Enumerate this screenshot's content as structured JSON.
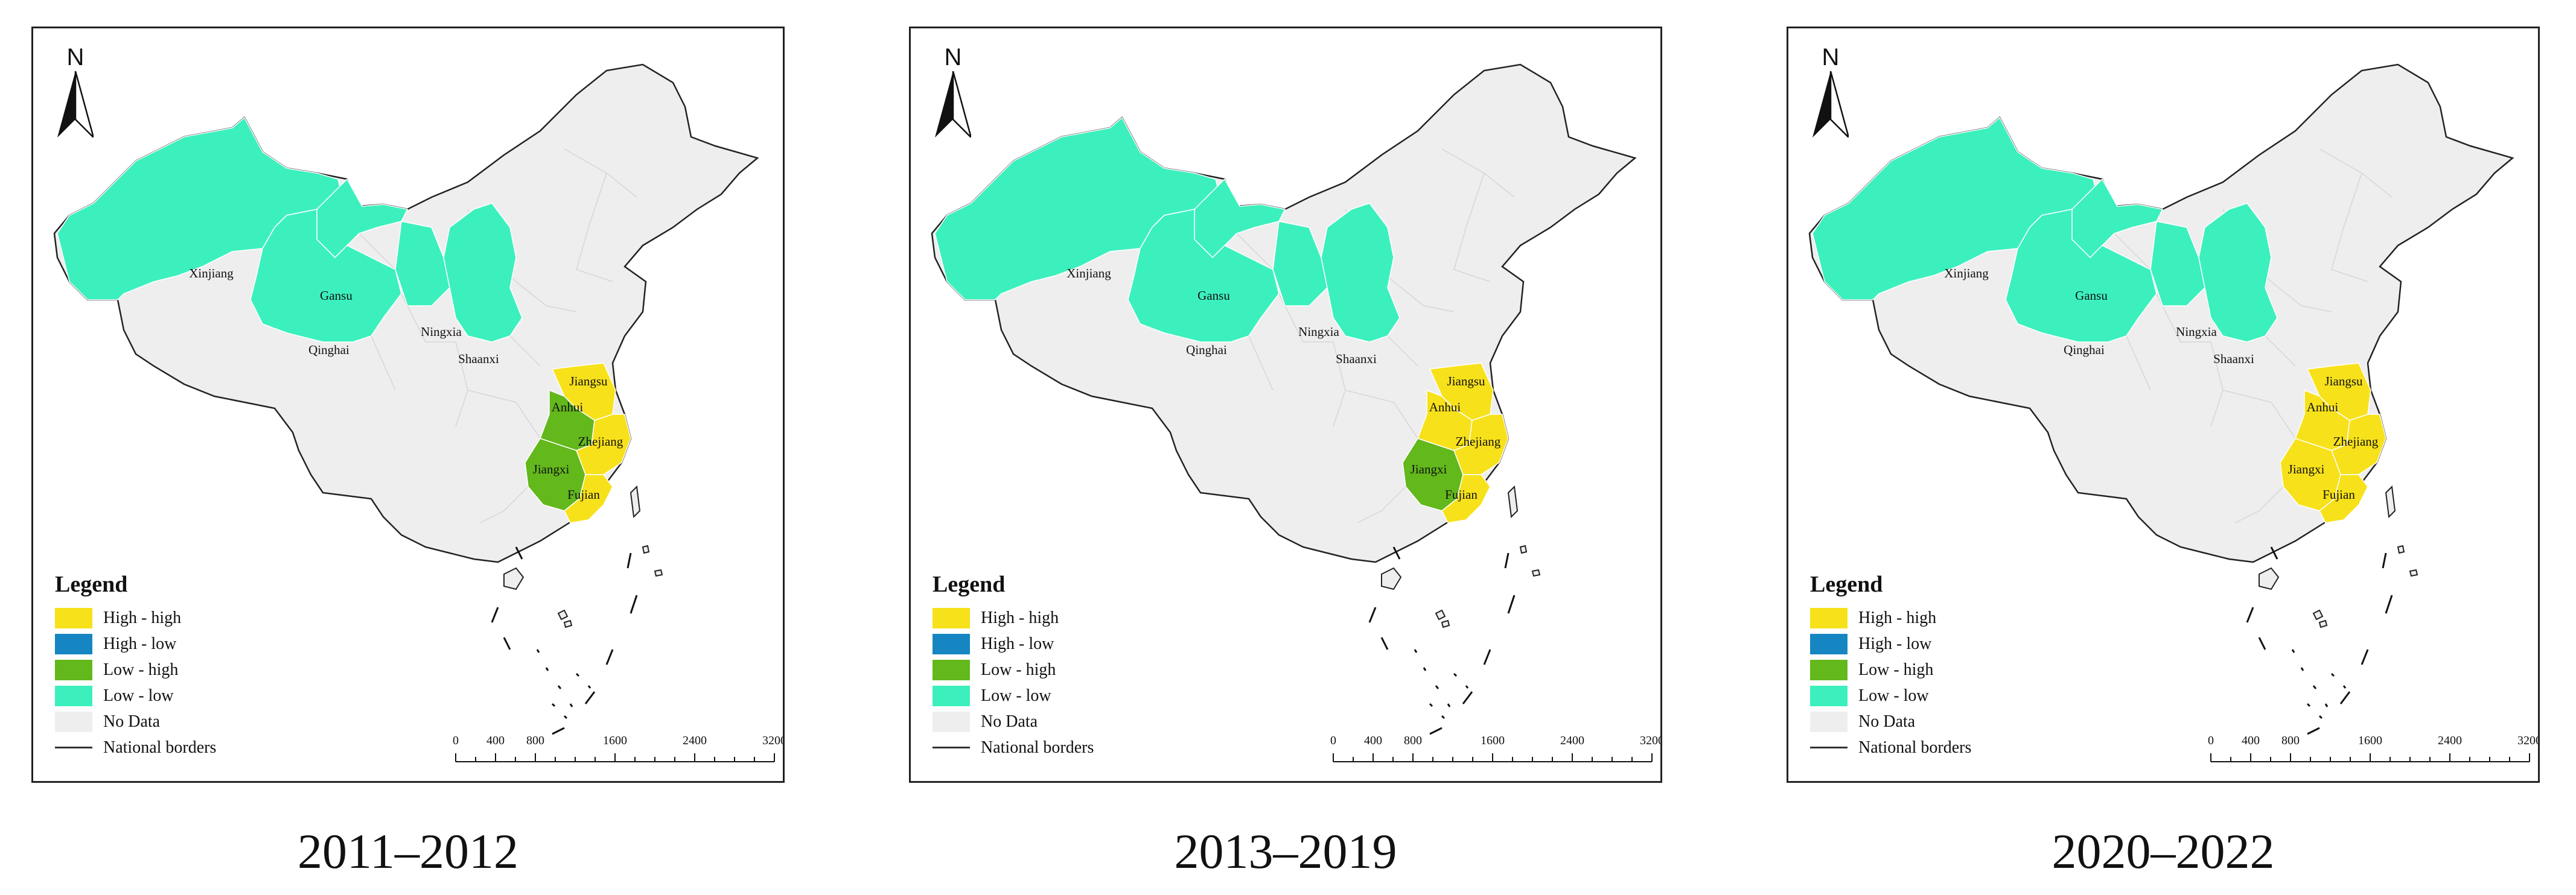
{
  "panels": [
    {
      "caption": "2011–2012",
      "provinces": {
        "Xinjiang": "low_low",
        "Gansu": "low_low",
        "Qinghai": "low_low",
        "Ningxia": "low_low",
        "Shaanxi": "low_low",
        "Jiangsu": "high_high",
        "Anhui": "low_high",
        "Zhejiang": "high_high",
        "Jiangxi": "low_high",
        "Fujian": "high_high"
      }
    },
    {
      "caption": "2013–2019",
      "provinces": {
        "Xinjiang": "low_low",
        "Gansu": "low_low",
        "Qinghai": "low_low",
        "Ningxia": "low_low",
        "Shaanxi": "low_low",
        "Jiangsu": "high_high",
        "Anhui": "high_high",
        "Zhejiang": "high_high",
        "Jiangxi": "low_high",
        "Fujian": "high_high"
      }
    },
    {
      "caption": "2020–2022",
      "provinces": {
        "Xinjiang": "low_low",
        "Gansu": "low_low",
        "Qinghai": "low_low",
        "Ningxia": "low_low",
        "Shaanxi": "low_low",
        "Jiangsu": "high_high",
        "Anhui": "high_high",
        "Zhejiang": "high_high",
        "Jiangxi": "high_high",
        "Fujian": "high_high"
      }
    }
  ],
  "legend": {
    "title": "Legend",
    "items": [
      {
        "key": "high_high",
        "label": "High - high",
        "color": "#f7e11a"
      },
      {
        "key": "high_low",
        "label": "High - low",
        "color": "#1586c1"
      },
      {
        "key": "low_high",
        "label": "Low - high",
        "color": "#63b81c"
      },
      {
        "key": "low_low",
        "label": "Low - low",
        "color": "#3cf0bd"
      },
      {
        "key": "no_data",
        "label": "No Data",
        "color": "#eeeeee"
      }
    ],
    "borders_label": "National borders"
  },
  "north_label": "N",
  "scale_bar": {
    "ticks": [
      "0",
      "400",
      "800",
      "1600",
      "2400",
      "3200"
    ],
    "unit": "km"
  }
}
